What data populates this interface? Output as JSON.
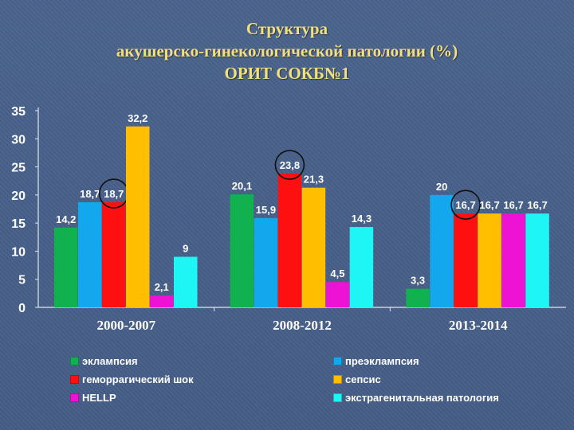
{
  "title": {
    "line1": "Структура",
    "line2": "акушерско-гинекологической патологии (%)",
    "line3": "ОРИТ СОКБ№1"
  },
  "chart_data": {
    "type": "bar",
    "title": "Структура акушерско-гинекологической патологии (%) ОРИТ СОКБ№1",
    "categories": [
      "2000-2007",
      "2008-2012",
      "2013-2014"
    ],
    "ylim": [
      0,
      35
    ],
    "yticks": [
      0,
      5,
      10,
      15,
      20,
      25,
      30,
      35
    ],
    "grid": false,
    "legend_position": "bottom",
    "series": [
      {
        "name": "эклампсия",
        "color": "#11b150",
        "values": [
          14.2,
          20.1,
          3.3
        ],
        "labels": [
          "14,2",
          "20,1",
          "3,3"
        ]
      },
      {
        "name": "преэклампсия",
        "color": "#13a8ee",
        "values": [
          18.7,
          15.9,
          20
        ],
        "labels": [
          "18,7",
          "15,9",
          "20"
        ]
      },
      {
        "name": "геморрагический шок",
        "color": "#ff1010",
        "values": [
          18.7,
          23.8,
          16.7
        ],
        "labels": [
          "18,7",
          "23,8",
          "16,7"
        ]
      },
      {
        "name": "сепсис",
        "color": "#ffbe00",
        "values": [
          32.2,
          21.3,
          16.7
        ],
        "labels": [
          "32,2",
          "21,3",
          "16,7"
        ]
      },
      {
        "name": "HELLP",
        "color": "#ee12d4",
        "values": [
          2.1,
          4.5,
          16.7
        ],
        "labels": [
          "2,1",
          "4,5",
          "16,7"
        ]
      },
      {
        "name": "экстрагенитальная патология",
        "color": "#1ef6f6",
        "values": [
          9,
          14.3,
          16.7
        ],
        "labels": [
          "9",
          "14,3",
          "16,7"
        ]
      }
    ],
    "circled": [
      {
        "series": 2,
        "category": 0
      },
      {
        "series": 2,
        "category": 1
      },
      {
        "series": 2,
        "category": 2
      }
    ]
  }
}
